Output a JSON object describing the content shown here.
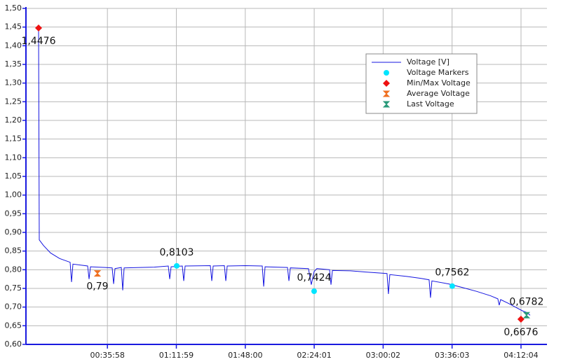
{
  "chart_data": {
    "type": "line",
    "xlim": [
      -396,
      15938
    ],
    "ylim": [
      0.6,
      1.5
    ],
    "xticks": [
      {
        "value": 2158,
        "label": "00:35:58"
      },
      {
        "value": 4319,
        "label": "01:11:59"
      },
      {
        "value": 6480,
        "label": "01:48:00"
      },
      {
        "value": 8641,
        "label": "02:24:01"
      },
      {
        "value": 10802,
        "label": "03:00:02"
      },
      {
        "value": 12963,
        "label": "03:36:03"
      },
      {
        "value": 15124,
        "label": "04:12:04"
      }
    ],
    "yticks": [
      {
        "value": 0.6,
        "label": "0,60"
      },
      {
        "value": 0.65,
        "label": "0,65"
      },
      {
        "value": 0.7,
        "label": "0,70"
      },
      {
        "value": 0.75,
        "label": "0,75"
      },
      {
        "value": 0.8,
        "label": "0,80"
      },
      {
        "value": 0.85,
        "label": "0,85"
      },
      {
        "value": 0.9,
        "label": "0,90"
      },
      {
        "value": 0.95,
        "label": "0,95"
      },
      {
        "value": 1.0,
        "label": "1,00"
      },
      {
        "value": 1.05,
        "label": "1,05"
      },
      {
        "value": 1.1,
        "label": "1,10"
      },
      {
        "value": 1.15,
        "label": "1,15"
      },
      {
        "value": 1.2,
        "label": "1,20"
      },
      {
        "value": 1.25,
        "label": "1,25"
      },
      {
        "value": 1.3,
        "label": "1,30"
      },
      {
        "value": 1.35,
        "label": "1,35"
      },
      {
        "value": 1.4,
        "label": "1,40"
      },
      {
        "value": 1.45,
        "label": "1,45"
      },
      {
        "value": 1.5,
        "label": "1,50"
      }
    ],
    "grid": true,
    "legend": "upper right",
    "series": [
      {
        "name": "Voltage [V]",
        "color": "#1515e0",
        "marker": "line",
        "x": [
          0,
          22,
          154,
          374,
          659,
          989,
          1033,
          1077,
          1539,
          1583,
          1627,
          2088,
          2308,
          2352,
          2396,
          2594,
          2638,
          2682,
          3187,
          3627,
          4066,
          4110,
          4154,
          4506,
          4550,
          4594,
          5385,
          5429,
          5473,
          5825,
          5869,
          5913,
          6484,
          7012,
          7056,
          7100,
          7803,
          7847,
          7891,
          8462,
          8550,
          8638,
          8726,
          9122,
          9166,
          9210,
          9781,
          10221,
          10924,
          10968,
          11012,
          11540,
          11979,
          12243,
          12287,
          12331,
          12859,
          13298,
          13738,
          14178,
          14397,
          14441,
          14485,
          14727,
          14946,
          15166,
          15320,
          15408
        ],
        "values": [
          1.4476,
          0.88,
          0.865,
          0.845,
          0.83,
          0.82,
          0.767,
          0.815,
          0.81,
          0.775,
          0.808,
          0.806,
          0.805,
          0.762,
          0.803,
          0.806,
          0.745,
          0.805,
          0.806,
          0.807,
          0.81,
          0.775,
          0.808,
          0.81,
          0.77,
          0.81,
          0.811,
          0.77,
          0.81,
          0.811,
          0.77,
          0.81,
          0.811,
          0.81,
          0.755,
          0.808,
          0.806,
          0.77,
          0.805,
          0.803,
          0.76,
          0.795,
          0.803,
          0.8,
          0.76,
          0.798,
          0.797,
          0.794,
          0.79,
          0.735,
          0.787,
          0.782,
          0.777,
          0.773,
          0.725,
          0.77,
          0.762,
          0.752,
          0.742,
          0.73,
          0.722,
          0.705,
          0.72,
          0.71,
          0.7,
          0.69,
          0.685,
          0.678
        ]
      },
      {
        "name": "Voltage Markers",
        "color": "#00e5ff",
        "marker": "circle",
        "label_position": "above",
        "x": [
          4330,
          8638,
          12968
        ],
        "values": [
          0.8103,
          0.7424,
          0.7562
        ],
        "value_labels": [
          "0,8103",
          "0,7424",
          "0,7562"
        ]
      },
      {
        "name": "Min/Max Voltage",
        "color": "#ee1111",
        "marker": "diamond",
        "label_position": "below",
        "x": [
          0,
          15122
        ],
        "values": [
          1.4476,
          0.6676
        ],
        "value_labels": [
          "1,4476",
          "0,6676"
        ]
      },
      {
        "name": "Average Voltage",
        "color": "#f07020",
        "marker": "hourglass",
        "label_position": "below",
        "x": [
          1846
        ],
        "values": [
          0.79
        ],
        "value_labels": [
          "0,79"
        ]
      },
      {
        "name": "Last Voltage",
        "color": "#2a9a7a",
        "marker": "hourglass",
        "label_position": "above",
        "x": [
          15298
        ],
        "values": [
          0.6782
        ],
        "value_labels": [
          "0,6782"
        ]
      }
    ]
  }
}
